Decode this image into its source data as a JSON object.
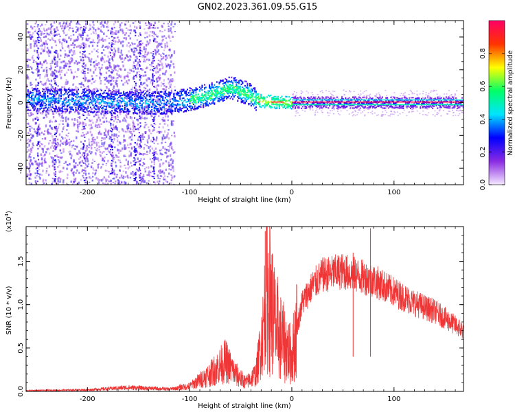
{
  "title": "GN02.2023.361.09.55.G15",
  "chart_data": [
    {
      "type": "heatmap",
      "xlabel": "Height of straight line (km)",
      "ylabel": "Frequency (Hz)",
      "xlim": [
        -260,
        168
      ],
      "ylim": [
        -50,
        50
      ],
      "xticks": [
        -200,
        -100,
        0,
        100
      ],
      "yticks": [
        -40,
        -20,
        0,
        20,
        40
      ],
      "colorbar": {
        "label": "Normalized spectral amplitude",
        "range": [
          0,
          1
        ],
        "ticks": [
          "0.0",
          "0.2",
          "0.4",
          "0.6",
          "0.8"
        ],
        "colormap": [
          "#f5e8ff",
          "#8a2be2",
          "#0000ff",
          "#00e5ff",
          "#00ff66",
          "#ffff00",
          "#ff3300",
          "#ff0066"
        ]
      },
      "ridge": [
        {
          "x": -260,
          "f": 2
        },
        {
          "x": -200,
          "f": 1
        },
        {
          "x": -160,
          "f": 0
        },
        {
          "x": -120,
          "f": 0
        },
        {
          "x": -100,
          "f": 2
        },
        {
          "x": -80,
          "f": 5
        },
        {
          "x": -60,
          "f": 9
        },
        {
          "x": -45,
          "f": 6
        },
        {
          "x": -38,
          "f": 3
        },
        {
          "x": -30,
          "f": 1
        },
        {
          "x": -10,
          "f": 0
        },
        {
          "x": 0,
          "f": 0
        },
        {
          "x": 168,
          "f": 0
        }
      ]
    },
    {
      "type": "line",
      "xlabel": "Height of straight line (km)",
      "ylabel": "SNR (10 * v/v)",
      "yscale_note": "(x10",
      "yscale_exp": "4",
      "xlim": [
        -260,
        168
      ],
      "ylim": [
        0,
        1.9
      ],
      "xticks": [
        -200,
        -100,
        0,
        100
      ],
      "yticks": [
        "0.0",
        "0.5",
        "1.0",
        "1.5"
      ],
      "color": "#ef3535",
      "envelope": [
        {
          "x": -260,
          "y": 0.01
        },
        {
          "x": -200,
          "y": 0.02
        },
        {
          "x": -160,
          "y": 0.05
        },
        {
          "x": -120,
          "y": 0.03
        },
        {
          "x": -100,
          "y": 0.06
        },
        {
          "x": -80,
          "y": 0.2
        },
        {
          "x": -65,
          "y": 0.35
        },
        {
          "x": -55,
          "y": 0.2
        },
        {
          "x": -45,
          "y": 0.1
        },
        {
          "x": -35,
          "y": 0.2
        },
        {
          "x": -28,
          "y": 0.7
        },
        {
          "x": -25,
          "y": 1.2
        },
        {
          "x": -20,
          "y": 1.0
        },
        {
          "x": -15,
          "y": 0.7
        },
        {
          "x": -10,
          "y": 0.6
        },
        {
          "x": -5,
          "y": 0.5
        },
        {
          "x": 0,
          "y": 0.4
        },
        {
          "x": 5,
          "y": 0.75
        },
        {
          "x": 10,
          "y": 1.05
        },
        {
          "x": 20,
          "y": 1.25
        },
        {
          "x": 30,
          "y": 1.38
        },
        {
          "x": 50,
          "y": 1.43
        },
        {
          "x": 80,
          "y": 1.32
        },
        {
          "x": 100,
          "y": 1.18
        },
        {
          "x": 120,
          "y": 1.05
        },
        {
          "x": 140,
          "y": 0.95
        },
        {
          "x": 168,
          "y": 0.72
        }
      ],
      "spikes": [
        {
          "x": -26,
          "y": 1.85
        },
        {
          "x": 77,
          "y": 1.88
        },
        {
          "x": -20,
          "y": 1.4
        },
        {
          "x": 60,
          "y": 1.6
        },
        {
          "x": -66,
          "y": 0.55
        },
        {
          "x": -14,
          "y": 1.32
        }
      ]
    }
  ]
}
